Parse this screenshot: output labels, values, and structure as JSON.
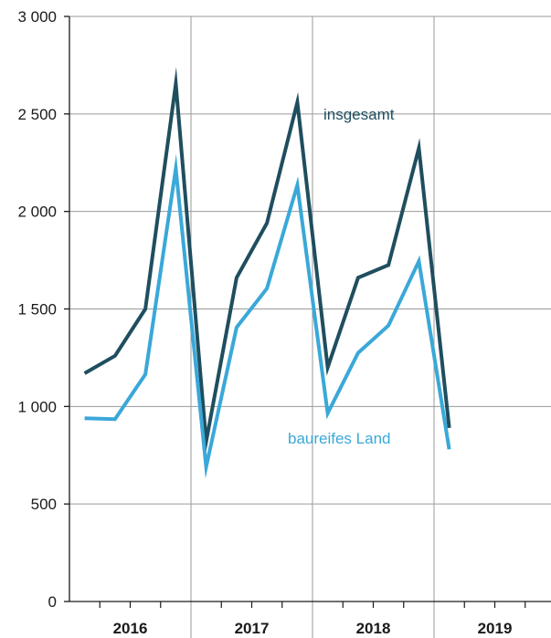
{
  "chart_data": {
    "type": "line",
    "title": "",
    "xlabel": "",
    "ylabel": "",
    "ylim": [
      0,
      3000
    ],
    "yticks": [
      0,
      500,
      1000,
      1500,
      2000,
      2500,
      3000
    ],
    "ytick_labels": [
      "0",
      "500",
      "1 000",
      "1 500",
      "2 000",
      "2 500",
      "3 000"
    ],
    "years": [
      "2016",
      "2017",
      "2018",
      "2019"
    ],
    "quarters_per_year": 4,
    "grid": true,
    "series": [
      {
        "name": "insgesamt",
        "color": "#1f4e5f",
        "values": [
          1170,
          1260,
          1500,
          2655,
          820,
          1660,
          1940,
          2560,
          1200,
          1660,
          1725,
          2325,
          890
        ]
      },
      {
        "name": "baureifes Land",
        "color": "#3aa8d8",
        "values": [
          940,
          935,
          1165,
          2220,
          690,
          1405,
          1605,
          2135,
          965,
          1275,
          1415,
          1745,
          780
        ]
      }
    ]
  }
}
